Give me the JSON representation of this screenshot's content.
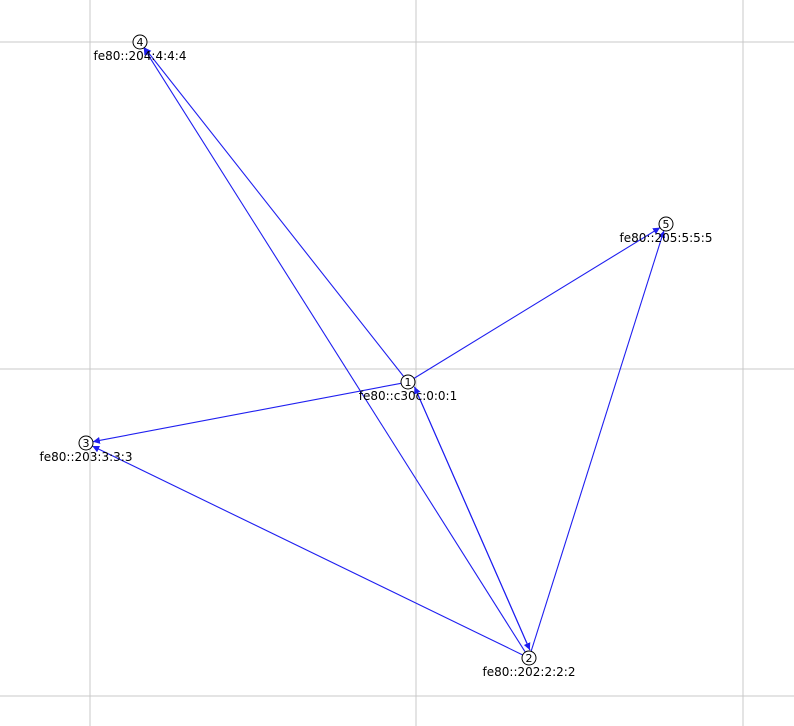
{
  "colors": {
    "background": "#ffffff",
    "grid": "#c8c8c8",
    "edge": "#1f1ff0",
    "node_stroke": "#000000"
  },
  "nodes": [
    {
      "id": "1",
      "label": "fe80::c30c:0:0:1"
    },
    {
      "id": "2",
      "label": "fe80::202:2:2:2"
    },
    {
      "id": "3",
      "label": "fe80::203:3:3:3"
    },
    {
      "id": "4",
      "label": "fe80::204:4:4:4"
    },
    {
      "id": "5",
      "label": "fe80::205:5:5:5"
    }
  ],
  "edges": [
    {
      "from": "1",
      "to": "4"
    },
    {
      "from": "1",
      "to": "5"
    },
    {
      "from": "1",
      "to": "3"
    },
    {
      "from": "1",
      "to": "2"
    },
    {
      "from": "2",
      "to": "1"
    },
    {
      "from": "2",
      "to": "4"
    },
    {
      "from": "2",
      "to": "3"
    },
    {
      "from": "2",
      "to": "5"
    }
  ]
}
